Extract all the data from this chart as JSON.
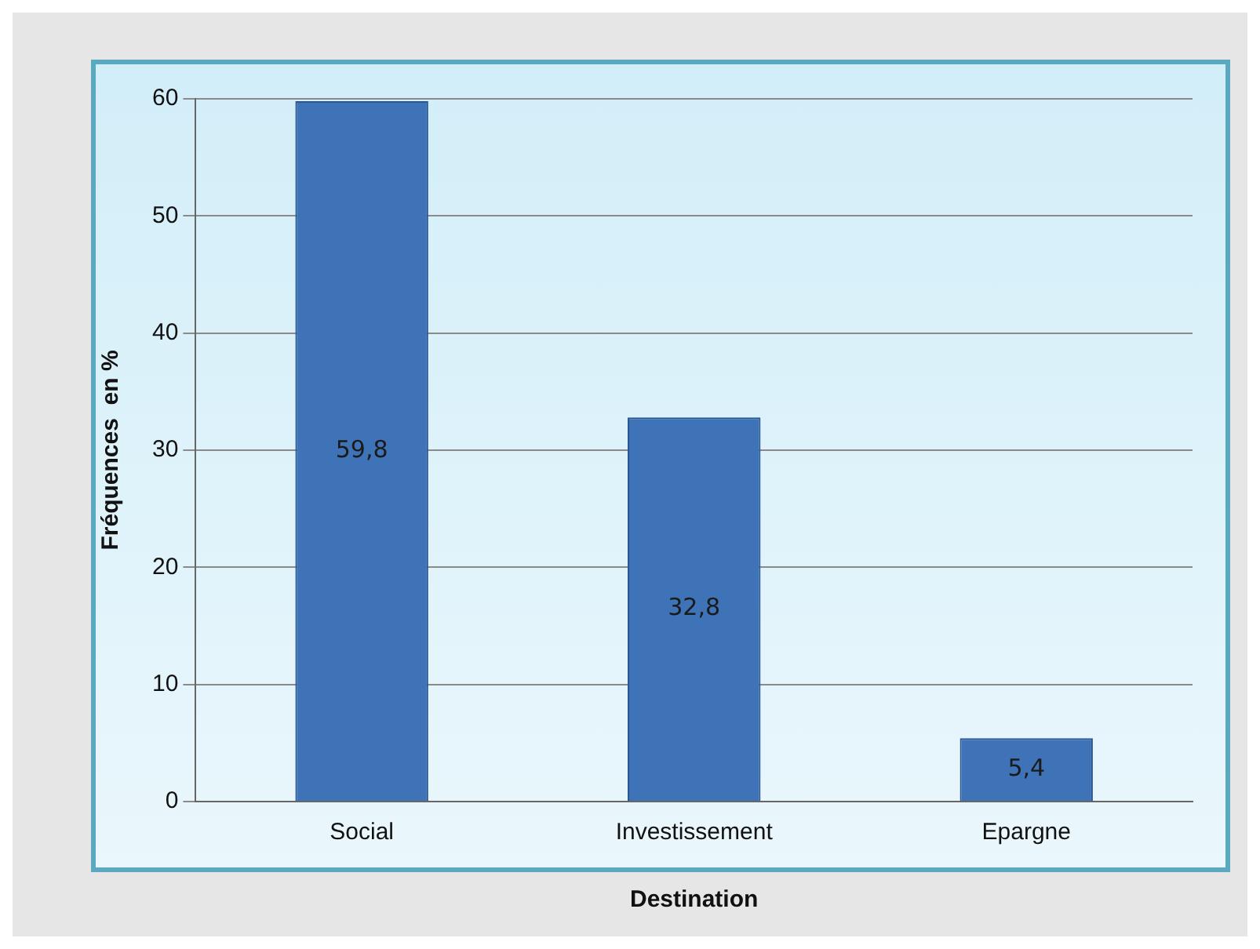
{
  "chart_data": {
    "type": "bar",
    "xlabel": "Destination",
    "ylabel": "Fréquences  en %",
    "categories": [
      "Social",
      "Investissement",
      "Epargne"
    ],
    "values": [
      59.8,
      32.8,
      5.4
    ],
    "value_labels": [
      "59,8",
      "32,8",
      "5,4"
    ],
    "color": "#3f73b8",
    "ylim": [
      0,
      60
    ],
    "yticks": [
      0,
      10,
      20,
      30,
      40,
      50,
      60
    ],
    "grid": "y",
    "legend": false
  }
}
